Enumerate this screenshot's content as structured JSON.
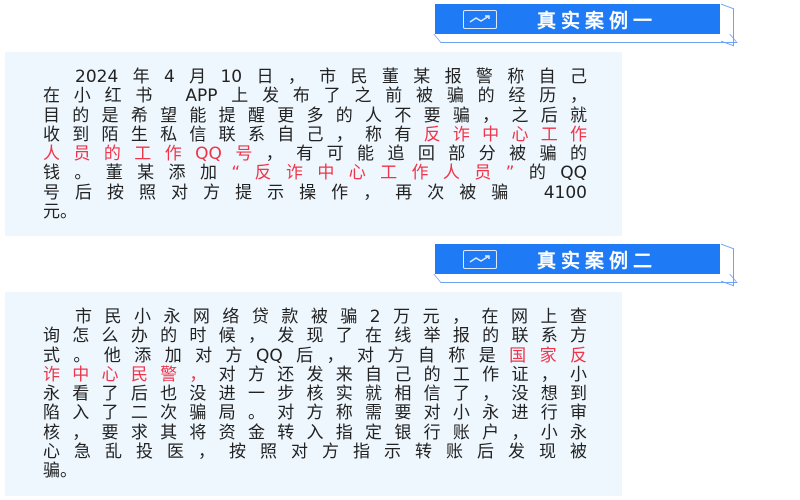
{
  "colors": {
    "accent": "#1f7bf5",
    "highlight": "#f0344a",
    "card_bg": "#eef7fd"
  },
  "case1": {
    "title": "真实案例一",
    "icon": "trending-chart-icon",
    "lines": [
      [
        {
          "t": "2024年4月10日，市民董某报警称自己"
        }
      ],
      [
        {
          "t": "在小红书 APP上发布了之前被骗的经历，"
        }
      ],
      [
        {
          "t": "目的是希望能提醒更多的人不要骗，之后就"
        }
      ],
      [
        {
          "t": "收到陌生私信联系自己，称有"
        },
        {
          "t": "反诈中心工作",
          "red": true
        }
      ],
      [
        {
          "t": "人员的工作QQ号",
          "red": true
        },
        {
          "t": "，有可能追回部分被骗的"
        }
      ],
      [
        {
          "t": "钱。董某添加"
        },
        {
          "t": "“反诈中心工作人员”",
          "red": true
        },
        {
          "t": "的QQ"
        }
      ],
      [
        {
          "t": "号后按照对方提示操作，再次被骗 4100"
        }
      ],
      [
        {
          "t": "元。"
        }
      ]
    ]
  },
  "case2": {
    "title": "真实案例二",
    "icon": "trending-chart-icon",
    "lines": [
      [
        {
          "t": "市民小永网络贷款被骗2万元，在网上查"
        }
      ],
      [
        {
          "t": "询怎么办的时候，发现了在线举报的联系方"
        }
      ],
      [
        {
          "t": "式。他添加对方QQ后，对方自称是"
        },
        {
          "t": "国家反",
          "red": true
        }
      ],
      [
        {
          "t": "诈中心民警，",
          "red": true
        },
        {
          "t": "对方还发来自己的工作证，小"
        }
      ],
      [
        {
          "t": "永看了后也没进一步核实就相信了，没想到"
        }
      ],
      [
        {
          "t": "陷入了二次骗局。对方称需要对小永进行审"
        }
      ],
      [
        {
          "t": "核，要求其将资金转入指定银行账户，小永"
        }
      ],
      [
        {
          "t": "心急乱投医，按照对方指示转账后发现被"
        }
      ],
      [
        {
          "t": "骗。"
        }
      ]
    ]
  }
}
